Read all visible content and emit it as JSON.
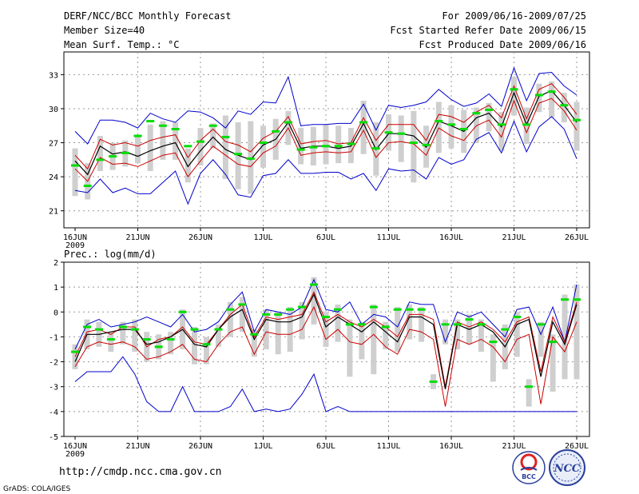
{
  "header": {
    "title": "DERF/NCC/BCC Monthly Forecast",
    "member_size": "Member Size=40",
    "variable": "Mean Surf. Temp.: °C",
    "period": "For 2009/06/16-2009/07/25",
    "refer_date": "Fcst Started Refer Date 2009/06/15",
    "produced_date": "Fcst Produced Date 2009/06/16"
  },
  "footer": {
    "url": "http://cmdp.ncc.cma.gov.cn",
    "credit": "GrADS: COLA/IGES",
    "logo_bcc": "BCC",
    "logo_ncc": "NCC"
  },
  "colors": {
    "max_min": "#0000cc",
    "spread": "#cc0000",
    "mean": "#000000",
    "obs": "#00dd00",
    "box": "#cfcfcf",
    "grid": "#999999"
  },
  "chart_data": [
    {
      "type": "line",
      "title": "Mean Surf. Temp.: °C",
      "x_tick_labels": [
        "16JUN",
        "21JUN",
        "26JUN",
        "1JUL",
        "6JUL",
        "11JUL",
        "16JUL",
        "21JUL",
        "26JUL"
      ],
      "x_year_label": "2009",
      "ylim": [
        19.5,
        35
      ],
      "yticks": [
        "21",
        "24",
        "27",
        "30",
        "33"
      ],
      "series": [
        {
          "name": "max",
          "values": [
            28,
            26.9,
            29,
            29,
            28.8,
            28.3,
            29.6,
            29.1,
            28.8,
            29.8,
            29.7,
            29.2,
            28.3,
            29.8,
            29.5,
            30.6,
            30.5,
            32.8,
            28.5,
            28.6,
            28.6,
            28.7,
            28.7,
            30.4,
            28.1,
            30.3,
            30.1,
            30.3,
            30.6,
            31.7,
            30.8,
            30.2,
            30.5,
            31.3,
            30.2,
            33.6,
            30.7,
            33.1,
            33.2,
            32,
            31.2
          ]
        },
        {
          "name": "upper",
          "values": [
            25.9,
            24.7,
            27.3,
            26.8,
            27,
            26.7,
            27.2,
            27.5,
            27.7,
            25.7,
            27.2,
            28.2,
            27.1,
            26.8,
            26.2,
            27.4,
            28,
            29.3,
            26.9,
            27.1,
            27.2,
            26.9,
            27,
            29.2,
            27.2,
            28.6,
            28.6,
            28.6,
            27.2,
            29.5,
            29.3,
            28.8,
            29.7,
            30.3,
            29.2,
            32,
            29.1,
            31.7,
            32.2,
            31,
            29.5
          ]
        },
        {
          "name": "mean",
          "values": [
            25.4,
            24.2,
            26.7,
            26,
            26.2,
            25.8,
            26.3,
            26.7,
            27,
            24.9,
            26.3,
            27.5,
            26.4,
            25.9,
            25.5,
            26.8,
            27.3,
            28.8,
            26.5,
            26.7,
            26.7,
            26.5,
            26.7,
            28.7,
            26.4,
            27.8,
            27.8,
            27.6,
            26.6,
            28.9,
            28.5,
            28,
            29.2,
            29.6,
            28.4,
            31.4,
            28.6,
            31.1,
            31.6,
            30.3,
            28.8
          ]
        },
        {
          "name": "lower",
          "values": [
            24.7,
            23.6,
            25.7,
            25.1,
            25.2,
            24.9,
            25.4,
            25.9,
            26.1,
            24,
            25.4,
            26.7,
            25.9,
            25.1,
            24.9,
            26.1,
            26.7,
            28.3,
            25.9,
            26.1,
            26.2,
            26.1,
            26.2,
            28.1,
            25.7,
            27,
            27.1,
            26.9,
            25.9,
            28.3,
            27.6,
            27.2,
            28.5,
            29,
            27.5,
            30.7,
            27.9,
            30.5,
            30.9,
            29.8,
            28.1
          ]
        },
        {
          "name": "min",
          "values": [
            22.8,
            22.6,
            23.8,
            22.6,
            23,
            22.5,
            22.5,
            23.5,
            24.5,
            21.6,
            24.3,
            25.5,
            24.2,
            22.4,
            22.2,
            24.1,
            24.3,
            25.5,
            24.3,
            24.3,
            24.4,
            24.4,
            23.8,
            24.3,
            22.8,
            24.7,
            24.5,
            24.6,
            23.8,
            25.7,
            25.1,
            25.5,
            27.3,
            27.9,
            26.1,
            28.9,
            26.2,
            28.4,
            29.3,
            28.2,
            25.6
          ]
        },
        {
          "name": "obs",
          "values": [
            25,
            23.2,
            25.5,
            25.8,
            26.1,
            27.6,
            28.9,
            28.5,
            28.2,
            26.7,
            27.1,
            28.5,
            27.5,
            26,
            25.6,
            27,
            28,
            28.8,
            26.4,
            26.6,
            26.7,
            26.7,
            26.9,
            28.8,
            26.5,
            27.9,
            27.8,
            27,
            26.8,
            28.9,
            28.6,
            28.2,
            29.6,
            29.9,
            28.6,
            31.7,
            28.6,
            31.2,
            31.5,
            30.3,
            29
          ]
        },
        {
          "name": "box_top",
          "values": [
            26.5,
            25.2,
            27.6,
            27,
            27.2,
            27.7,
            28.6,
            28.9,
            28.8,
            26.5,
            28.3,
            28.7,
            29.4,
            28.8,
            28.9,
            28.5,
            29.1,
            29.8,
            28.3,
            28.4,
            28.6,
            28.5,
            28.3,
            30.7,
            28.8,
            29.5,
            29.4,
            29.8,
            28.5,
            30.6,
            30.3,
            29.9,
            30.1,
            30.5,
            29.7,
            32.8,
            30.1,
            32.2,
            32.4,
            31.4,
            30.6
          ]
        },
        {
          "name": "box_bottom",
          "values": [
            22.3,
            22,
            24.5,
            24.6,
            24.9,
            25.2,
            24.5,
            25.5,
            25.5,
            23.5,
            25,
            26.5,
            23.8,
            22.9,
            22.5,
            24.8,
            25.5,
            26.8,
            25.1,
            25,
            25.1,
            25.2,
            25.2,
            26,
            24.1,
            26.3,
            25.3,
            23.5,
            24.8,
            26.1,
            26.5,
            26.1,
            27,
            28,
            26.3,
            29.4,
            26.9,
            29.7,
            29.2,
            28.8,
            26.3
          ]
        }
      ]
    },
    {
      "type": "line",
      "title": "Prec.: log(mm/d)",
      "x_tick_labels": [
        "16JUN",
        "21JUN",
        "26JUN",
        "1JUL",
        "6JUL",
        "11JUL",
        "16JUL",
        "21JUL",
        "26JUL"
      ],
      "x_year_label": "2009",
      "ylim": [
        -5,
        2
      ],
      "yticks": [
        "-5",
        "-4",
        "-3",
        "-2",
        "-1",
        "0",
        "1",
        "2"
      ],
      "series": [
        {
          "name": "max",
          "values": [
            -1.5,
            -0.5,
            -0.3,
            -0.6,
            -0.5,
            -0.4,
            -0.2,
            -0.4,
            -0.6,
            -0.1,
            -0.8,
            -0.7,
            -0.4,
            0.3,
            0.8,
            -0.8,
            0.1,
            0,
            -0.1,
            0.2,
            1.3,
            0.1,
            0,
            0.4,
            -0.5,
            -0.1,
            -0.2,
            -0.6,
            0.4,
            0.3,
            0.3,
            -1.2,
            0,
            -0.2,
            0,
            -0.5,
            -1,
            0.1,
            0.2,
            -0.9,
            0.2,
            -1.2,
            1.1
          ]
        },
        {
          "name": "upper",
          "values": [
            -1.8,
            -0.8,
            -0.7,
            -0.9,
            -0.6,
            -0.6,
            -1.4,
            -1.1,
            -1,
            -0.6,
            -1.2,
            -1.3,
            -0.7,
            -0.1,
            0.3,
            -1,
            -0.2,
            -0.3,
            -0.2,
            -0.1,
            0.8,
            -0.4,
            -0.1,
            -0.4,
            -0.6,
            -0.3,
            -0.6,
            -1,
            -0.1,
            -0.1,
            -0.3,
            -3,
            -0.4,
            -0.6,
            -0.4,
            -0.7,
            -1.2,
            -0.4,
            -0.2,
            -2.4,
            -0.2,
            -1.2,
            0.4
          ]
        },
        {
          "name": "mean",
          "values": [
            -2,
            -0.9,
            -0.9,
            -0.8,
            -0.7,
            -0.7,
            -1.3,
            -1.2,
            -1,
            -0.7,
            -1.3,
            -1.4,
            -0.7,
            -0.2,
            0.1,
            -1.1,
            -0.3,
            -0.4,
            -0.4,
            -0.2,
            0.7,
            -0.6,
            -0.2,
            -0.5,
            -0.8,
            -0.4,
            -0.8,
            -1.2,
            -0.2,
            -0.2,
            -0.5,
            -3.1,
            -0.5,
            -0.7,
            -0.5,
            -0.8,
            -1.4,
            -0.5,
            -0.3,
            -2.6,
            -0.4,
            -1.3,
            0.3
          ]
        },
        {
          "name": "lower",
          "values": [
            -2.2,
            -1.4,
            -1.2,
            -1.3,
            -1.2,
            -1.4,
            -1.9,
            -1.8,
            -1.6,
            -1.3,
            -1.9,
            -2,
            -1.3,
            -0.8,
            -0.6,
            -1.7,
            -0.8,
            -0.9,
            -0.9,
            -0.7,
            0.2,
            -1.1,
            -0.7,
            -1.2,
            -1.3,
            -0.9,
            -1.4,
            -1.7,
            -0.7,
            -0.8,
            -1.1,
            -3.8,
            -1.1,
            -1.3,
            -1.1,
            -1.4,
            -2,
            -1.1,
            -0.9,
            -3.7,
            -1,
            -1.6,
            -0.4
          ]
        },
        {
          "name": "min",
          "values": [
            -2.8,
            -2.4,
            -2.4,
            -2.4,
            -1.8,
            -2.5,
            -3.6,
            -4,
            -4,
            -3,
            -4,
            -4,
            -4,
            -3.8,
            -3.1,
            -4,
            -3.9,
            -4,
            -3.9,
            -3.3,
            -2.5,
            -4,
            -3.8,
            -4,
            -4,
            -4,
            -4,
            -4,
            -4,
            -4,
            -4,
            -4,
            -4,
            -4,
            -4,
            -4,
            -4,
            -4,
            -4,
            -4,
            -4,
            -4,
            -4
          ]
        },
        {
          "name": "obs",
          "values": [
            -1.6,
            -0.6,
            -0.7,
            -1.1,
            -0.6,
            -0.7,
            -1.1,
            -1.4,
            -1.1,
            0,
            -0.7,
            -1.3,
            -0.7,
            0.1,
            0.3,
            -0.9,
            -0.1,
            -0.1,
            0.1,
            0.2,
            1.1,
            -0.2,
            0.1,
            -0.5,
            -0.5,
            0.2,
            -0.6,
            0.1,
            0.1,
            0.1,
            -2.8,
            -0.5,
            -0.5,
            -0.3,
            -0.5,
            -1.2,
            -0.7,
            -0.2,
            -3,
            -0.5,
            -1.2,
            0.5,
            0.5
          ]
        },
        {
          "name": "box_top",
          "values": [
            -1.3,
            -0.3,
            -0.4,
            -0.8,
            -0.4,
            -0.3,
            -0.8,
            -0.9,
            -0.8,
            0.1,
            -0.6,
            -1,
            -0.5,
            0.4,
            0.6,
            -0.7,
            0.1,
            0,
            0.2,
            0.4,
            1.4,
            0,
            0.3,
            -0.3,
            -0.4,
            0.3,
            -0.4,
            0.2,
            0.3,
            0.2,
            -2.5,
            -0.3,
            -0.3,
            -0.1,
            -0.3,
            -0.9,
            -0.5,
            0,
            -2.7,
            -0.4,
            -0.9,
            0.7,
            1.1
          ]
        },
        {
          "name": "box_bottom",
          "values": [
            -2.3,
            -1.5,
            -1.4,
            -1.6,
            -1.3,
            -1.6,
            -2,
            -1.9,
            -1.7,
            -1.5,
            -2.1,
            -2.1,
            -1.4,
            -1,
            -0.8,
            -1.8,
            -1.5,
            -1.7,
            -1.6,
            -1.1,
            -0.5,
            -1.4,
            -1.2,
            -2.6,
            -1.9,
            -2.5,
            -1.5,
            -1.6,
            -1.1,
            -1.2,
            -3.1,
            -1.3,
            -1.5,
            -1.3,
            -1.6,
            -2.8,
            -2.3,
            -1.8,
            -3.8,
            -1.8,
            -3.2,
            -2.7,
            -2.7
          ]
        }
      ]
    }
  ]
}
